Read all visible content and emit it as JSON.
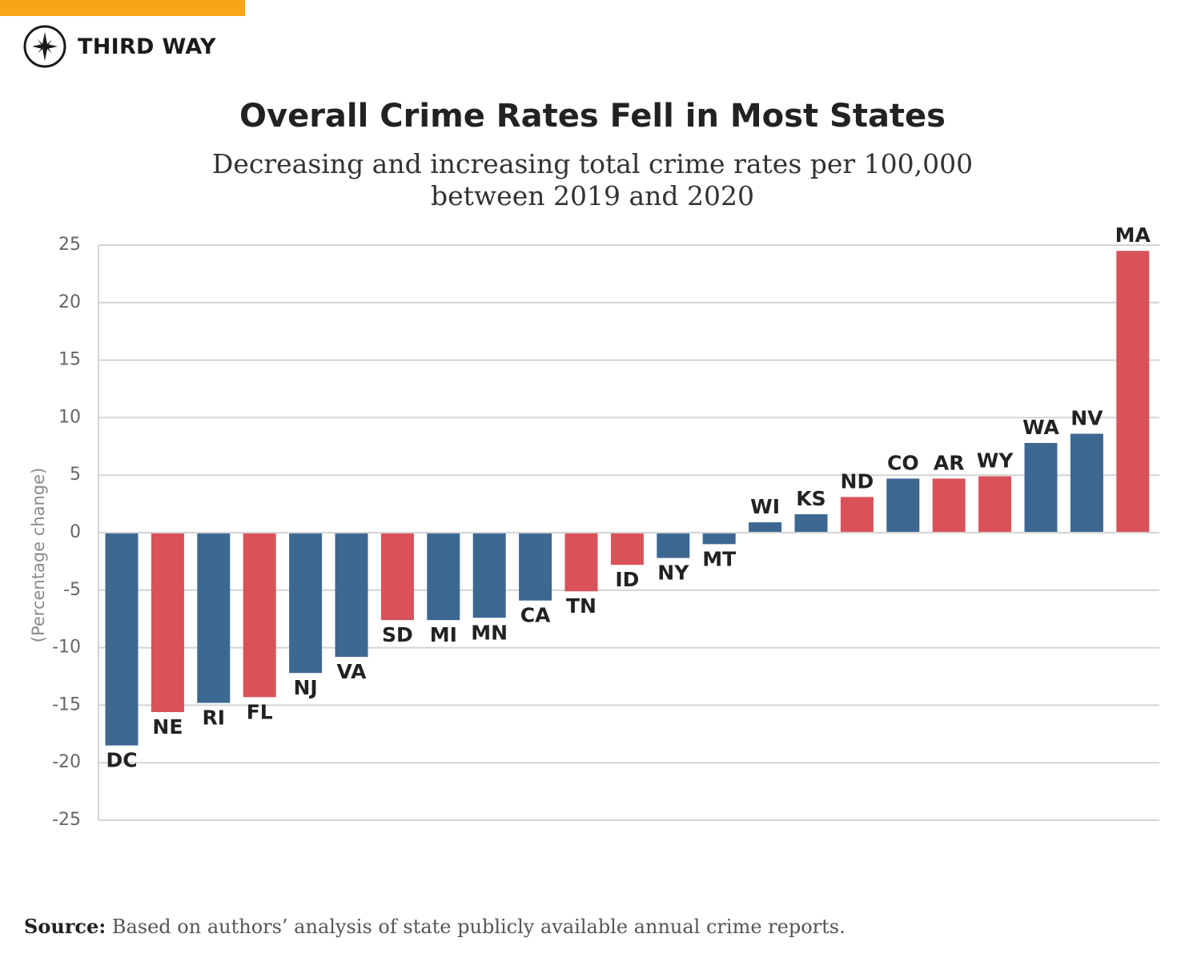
{
  "header": {
    "brand_name": "THIRD WAY",
    "logo_icon": "compass-star-icon",
    "accent_color": "#F9A51A"
  },
  "source": {
    "label": "Source:",
    "text": "Based on authors’ analysis of state publicly available annual crime reports."
  },
  "chart_data": {
    "type": "bar",
    "title": "Overall Crime Rates Fell in Most States",
    "subtitle": [
      "Decreasing and increasing total crime rates per 100,000",
      "between 2019 and 2020"
    ],
    "xlabel": "",
    "ylabel": "(Percentage change)",
    "ylim": [
      -25,
      25
    ],
    "yticks": [
      25,
      20,
      15,
      10,
      5,
      0,
      -5,
      -10,
      -15,
      -20,
      -25
    ],
    "grid": true,
    "categories": [
      "DC",
      "NE",
      "RI",
      "FL",
      "NJ",
      "VA",
      "SD",
      "MI",
      "MN",
      "CA",
      "TN",
      "ID",
      "NY",
      "MT",
      "WI",
      "KS",
      "ND",
      "CO",
      "AR",
      "WY",
      "WA",
      "NV",
      "MA"
    ],
    "values": [
      -18.5,
      -15.6,
      -14.8,
      -14.3,
      -12.2,
      -10.8,
      -7.6,
      -7.6,
      -7.4,
      -5.9,
      -5.1,
      -2.8,
      -2.2,
      -1.0,
      0.9,
      1.6,
      3.1,
      4.7,
      4.7,
      4.9,
      7.8,
      8.6,
      24.5
    ],
    "colors": [
      "#3D6892",
      "#D95259",
      "#3D6892",
      "#D95259",
      "#3D6892",
      "#3D6892",
      "#D95259",
      "#3D6892",
      "#3D6892",
      "#3D6892",
      "#D95259",
      "#D95259",
      "#3D6892",
      "#3D6892",
      "#3D6892",
      "#3D6892",
      "#D95259",
      "#3D6892",
      "#D95259",
      "#D95259",
      "#3D6892",
      "#3D6892",
      "#D95259"
    ],
    "series_colors": {
      "blue": "#3D6892",
      "red": "#D95259"
    }
  }
}
